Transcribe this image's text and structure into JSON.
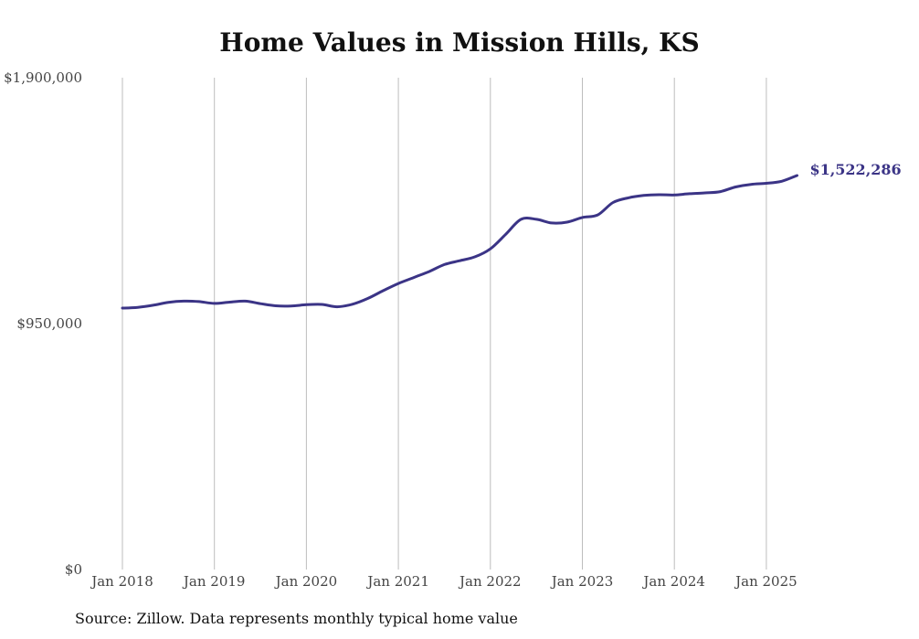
{
  "chart_data": {
    "type": "line",
    "title": "Home Values in Mission Hills, KS",
    "xlabel": "",
    "ylabel": "",
    "ylim": [
      0,
      1900000
    ],
    "y_ticks": [
      0,
      950000,
      1900000
    ],
    "y_tick_labels": [
      "$0",
      "$950,000",
      "$1,900,000"
    ],
    "x_ticks": [
      "2018-01",
      "2019-01",
      "2020-01",
      "2021-01",
      "2022-01",
      "2023-01",
      "2024-01",
      "2025-01"
    ],
    "x_tick_labels": [
      "Jan 2018",
      "Jan 2019",
      "Jan 2020",
      "Jan 2021",
      "Jan 2022",
      "Jan 2023",
      "Jan 2024",
      "Jan 2025"
    ],
    "grid": "vertical",
    "color": "#3b3486",
    "end_label": "$1,522,286",
    "series": [
      {
        "x": [
          "2018-01",
          "2018-03",
          "2018-05",
          "2018-07",
          "2018-09",
          "2018-11",
          "2019-01",
          "2019-03",
          "2019-05",
          "2019-07",
          "2019-09",
          "2019-11",
          "2020-01",
          "2020-03",
          "2020-05",
          "2020-07",
          "2020-09",
          "2020-11",
          "2021-01",
          "2021-03",
          "2021-05",
          "2021-07",
          "2021-09",
          "2021-11",
          "2022-01",
          "2022-03",
          "2022-05",
          "2022-07",
          "2022-09",
          "2022-11",
          "2023-01",
          "2023-03",
          "2023-05",
          "2023-07",
          "2023-09",
          "2023-11",
          "2024-01",
          "2024-03",
          "2024-05",
          "2024-07",
          "2024-09",
          "2024-11",
          "2025-01",
          "2025-03",
          "2025-05"
        ],
        "values": [
          1010000,
          1013000,
          1021000,
          1032000,
          1037000,
          1035000,
          1028000,
          1033000,
          1037000,
          1027000,
          1019000,
          1018000,
          1023000,
          1024000,
          1015000,
          1025000,
          1047000,
          1077000,
          1105000,
          1128000,
          1151000,
          1178000,
          1193000,
          1208000,
          1239000,
          1295000,
          1353000,
          1353000,
          1339000,
          1342000,
          1360000,
          1370000,
          1418000,
          1436000,
          1445000,
          1448000,
          1447000,
          1452000,
          1455000,
          1460000,
          1478000,
          1488000,
          1492000,
          1500000,
          1522286
        ]
      }
    ]
  },
  "source": "Source: Zillow. Data represents monthly typical home value"
}
